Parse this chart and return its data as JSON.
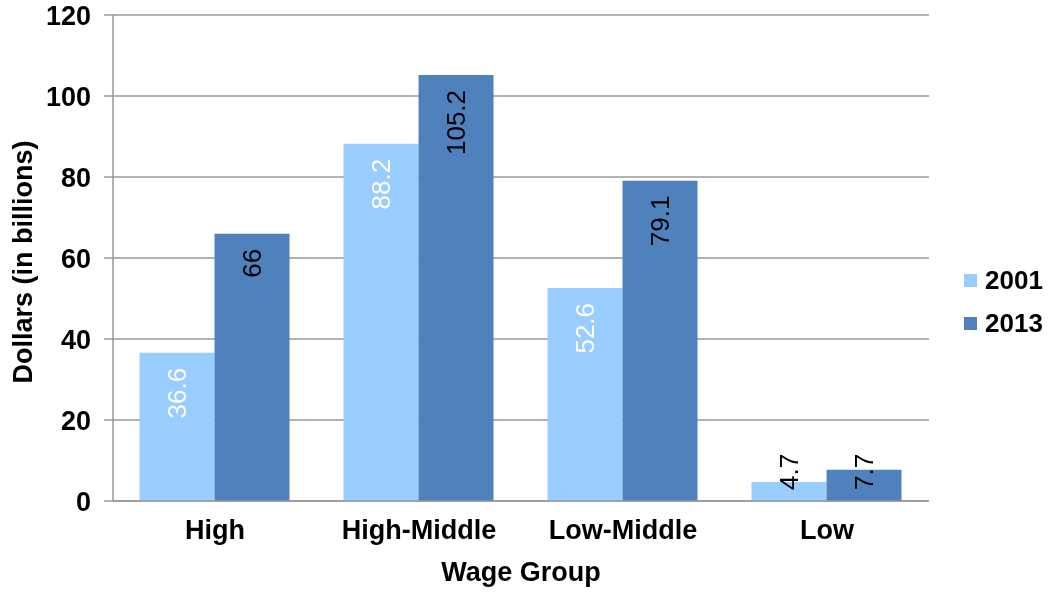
{
  "chart_data": {
    "type": "bar",
    "xlabel": "Wage Group",
    "ylabel": "Dollars (in billions)",
    "categories": [
      "High",
      "High-Middle",
      "Low-Middle",
      "Low"
    ],
    "series": [
      {
        "name": "2001",
        "color": "#99ccff",
        "values": [
          36.6,
          88.2,
          52.6,
          4.7
        ]
      },
      {
        "name": "2013",
        "color": "#4f81bd",
        "values": [
          66,
          105.2,
          79.1,
          7.7
        ]
      }
    ],
    "ylim": [
      0,
      120
    ],
    "yticks": [
      0,
      20,
      40,
      60,
      80,
      100,
      120
    ],
    "grid": "y",
    "legend": "right",
    "data_labels": true
  }
}
